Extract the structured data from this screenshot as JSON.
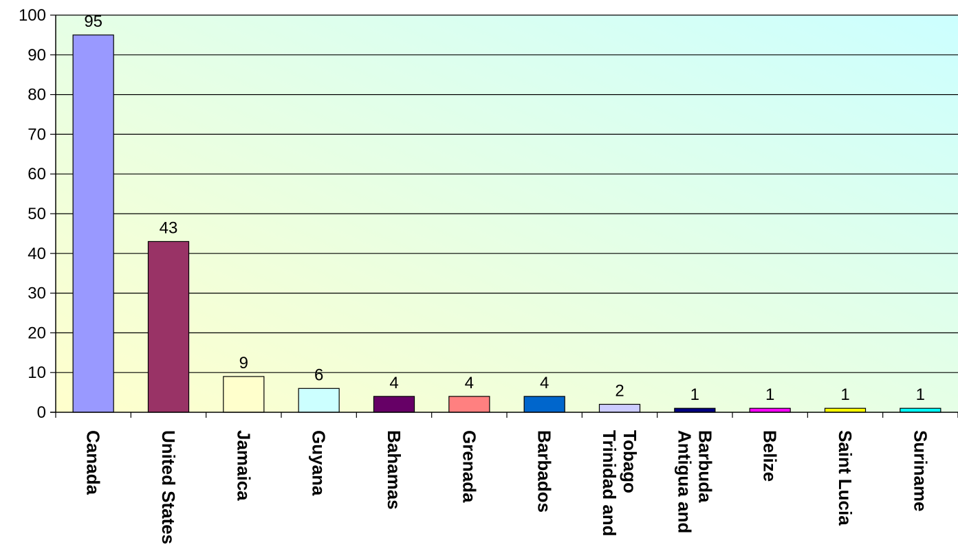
{
  "chart_data": {
    "type": "bar",
    "title": "",
    "xlabel": "",
    "ylabel": "",
    "ylim": [
      0,
      100
    ],
    "yticks": [
      0,
      10,
      20,
      30,
      40,
      50,
      60,
      70,
      80,
      90,
      100
    ],
    "grid": true,
    "legend": "none",
    "categories": [
      [
        "Canada"
      ],
      [
        "United States"
      ],
      [
        "Jamaica"
      ],
      [
        "Guyana"
      ],
      [
        "Bahamas"
      ],
      [
        "Grenada"
      ],
      [
        "Barbados"
      ],
      [
        "Trinidad and",
        "Tobago"
      ],
      [
        "Antigua and",
        "Barbuda"
      ],
      [
        "Belize"
      ],
      [
        "Saint Lucia"
      ],
      [
        "Suriname"
      ]
    ],
    "values": [
      95,
      43,
      9,
      6,
      4,
      4,
      4,
      2,
      1,
      1,
      1,
      1
    ],
    "colors": [
      "#9999FF",
      "#993366",
      "#FFFFCC",
      "#CCFFFF",
      "#660066",
      "#FF8080",
      "#0066CC",
      "#CCCCFF",
      "#000080",
      "#FF00FF",
      "#FFFF00",
      "#00FFFF"
    ]
  }
}
